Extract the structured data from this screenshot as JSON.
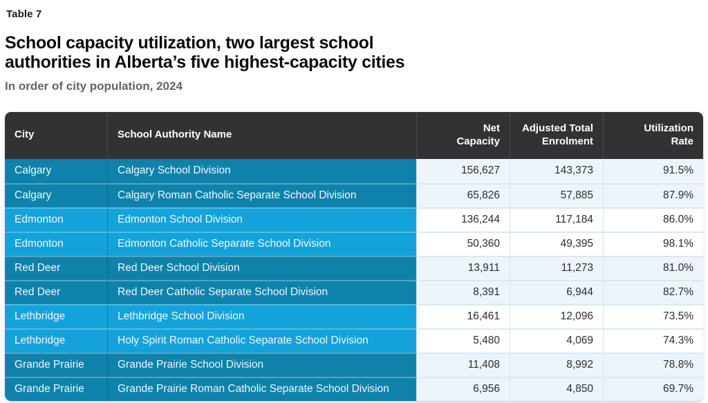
{
  "page": {
    "eyebrow": "Table 7",
    "title": "School capacity utilization, two largest school\nauthorities in Alberta’s five highest-capacity cities",
    "subtitle": "In order of city population, 2024"
  },
  "table": {
    "columns": [
      "City",
      "School Authority Name",
      "Net\nCapacity",
      "Adjusted Total\nEnrolment",
      "Utilization\nRate"
    ],
    "rows": [
      {
        "city": "Calgary",
        "authority": "Calgary School Division",
        "net_capacity": "156,627",
        "enrolment": "143,373",
        "utilization": "91.5%",
        "shade": "teal"
      },
      {
        "city": "Calgary",
        "authority": "Calgary Roman Catholic Separate School Division",
        "net_capacity": "65,826",
        "enrolment": "57,885",
        "utilization": "87.9%",
        "shade": "teal"
      },
      {
        "city": "Edmonton",
        "authority": "Edmonton School Division",
        "net_capacity": "136,244",
        "enrolment": "117,184",
        "utilization": "86.0%",
        "shade": "blue"
      },
      {
        "city": "Edmonton",
        "authority": "Edmonton Catholic Separate School Division",
        "net_capacity": "50,360",
        "enrolment": "49,395",
        "utilization": "98.1%",
        "shade": "blue"
      },
      {
        "city": "Red Deer",
        "authority": "Red Deer School Division",
        "net_capacity": "13,911",
        "enrolment": "11,273",
        "utilization": "81.0%",
        "shade": "teal"
      },
      {
        "city": "Red Deer",
        "authority": "Red Deer Catholic Separate School Division",
        "net_capacity": "8,391",
        "enrolment": "6,944",
        "utilization": "82.7%",
        "shade": "teal"
      },
      {
        "city": "Lethbridge",
        "authority": "Lethbridge School Division",
        "net_capacity": "16,461",
        "enrolment": "12,096",
        "utilization": "73.5%",
        "shade": "blue"
      },
      {
        "city": "Lethbridge",
        "authority": "Holy Spirit Roman Catholic Separate School Division",
        "net_capacity": "5,480",
        "enrolment": "4,069",
        "utilization": "74.3%",
        "shade": "blue"
      },
      {
        "city": "Grande Prairie",
        "authority": "Grande Prairie School Division",
        "net_capacity": "11,408",
        "enrolment": "8,992",
        "utilization": "78.8%",
        "shade": "teal"
      },
      {
        "city": "Grande Prairie",
        "authority": "Grande Prairie Roman Catholic Separate School Division",
        "net_capacity": "6,956",
        "enrolment": "4,850",
        "utilization": "69.7%",
        "shade": "teal"
      }
    ]
  },
  "colors": {
    "header_bg": "#323235",
    "row_teal": "#0F82AB",
    "row_blue": "#14A2DA",
    "numeric_tint": "#EDF5FA",
    "numeric_white": "#FFFFFF"
  },
  "chart_data": {
    "type": "table",
    "title": "School capacity utilization, two largest school authorities in Alberta’s five highest-capacity cities",
    "subtitle": "In order of city population, 2024",
    "table_label": "Table 7",
    "columns": [
      "City",
      "School Authority Name",
      "Net Capacity",
      "Adjusted Total Enrolment",
      "Utilization Rate"
    ],
    "rows": [
      [
        "Calgary",
        "Calgary School Division",
        156627,
        143373,
        91.5
      ],
      [
        "Calgary",
        "Calgary Roman Catholic Separate School Division",
        65826,
        57885,
        87.9
      ],
      [
        "Edmonton",
        "Edmonton School Division",
        136244,
        117184,
        86.0
      ],
      [
        "Edmonton",
        "Edmonton Catholic Separate School Division",
        50360,
        49395,
        98.1
      ],
      [
        "Red Deer",
        "Red Deer School Division",
        13911,
        11273,
        81.0
      ],
      [
        "Red Deer",
        "Red Deer Catholic Separate School Division",
        8391,
        6944,
        82.7
      ],
      [
        "Lethbridge",
        "Lethbridge School Division",
        16461,
        12096,
        73.5
      ],
      [
        "Lethbridge",
        "Holy Spirit Roman Catholic Separate School Division",
        5480,
        4069,
        74.3
      ],
      [
        "Grande Prairie",
        "Grande Prairie School Division",
        11408,
        8992,
        78.8
      ],
      [
        "Grande Prairie",
        "Grande Prairie Roman Catholic Separate School Division",
        6956,
        4850,
        69.7
      ]
    ],
    "utilization_rate_unit": "%"
  }
}
